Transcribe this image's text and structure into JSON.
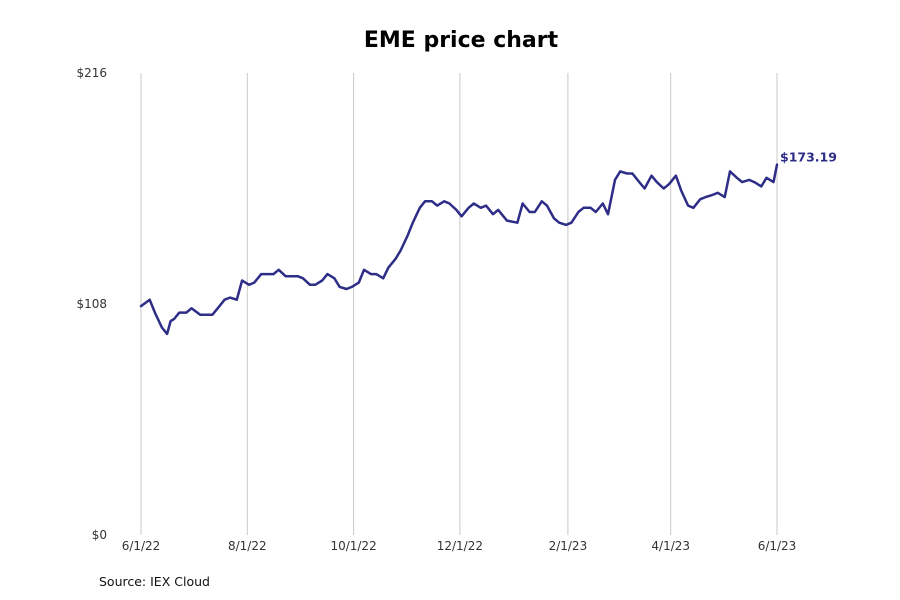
{
  "chart_data": {
    "type": "line",
    "title": "EME price chart",
    "source": "Source: IEX Cloud",
    "xlabel": "",
    "ylabel": "",
    "ylim": [
      0,
      216
    ],
    "y_ticks": [
      {
        "value": 0,
        "label": "$0"
      },
      {
        "value": 108,
        "label": "$108"
      },
      {
        "value": 216,
        "label": "$216"
      }
    ],
    "x_domain": [
      "2022-06-01",
      "2023-06-01"
    ],
    "x_ticks": [
      {
        "date": "2022-06-01",
        "label": "6/1/22"
      },
      {
        "date": "2022-08-01",
        "label": "8/1/22"
      },
      {
        "date": "2022-10-01",
        "label": "10/1/22"
      },
      {
        "date": "2022-12-01",
        "label": "12/1/22"
      },
      {
        "date": "2023-02-01",
        "label": "2/1/23"
      },
      {
        "date": "2023-04-01",
        "label": "4/1/23"
      },
      {
        "date": "2023-06-01",
        "label": "6/1/23"
      }
    ],
    "vertical_grid": true,
    "horizontal_grid": false,
    "series": [
      {
        "color": "#2e2d87",
        "last_value_label": "$173.19",
        "x": [
          "2022-06-01",
          "2022-06-06",
          "2022-06-09",
          "2022-06-13",
          "2022-06-16",
          "2022-06-18",
          "2022-06-20",
          "2022-06-23",
          "2022-06-27",
          "2022-06-30",
          "2022-07-05",
          "2022-07-08",
          "2022-07-12",
          "2022-07-15",
          "2022-07-19",
          "2022-07-22",
          "2022-07-26",
          "2022-07-29",
          "2022-08-02",
          "2022-08-05",
          "2022-08-09",
          "2022-08-12",
          "2022-08-16",
          "2022-08-19",
          "2022-08-23",
          "2022-08-26",
          "2022-08-30",
          "2022-09-02",
          "2022-09-06",
          "2022-09-09",
          "2022-09-13",
          "2022-09-16",
          "2022-09-20",
          "2022-09-23",
          "2022-09-27",
          "2022-09-30",
          "2022-10-04",
          "2022-10-07",
          "2022-10-11",
          "2022-10-14",
          "2022-10-18",
          "2022-10-21",
          "2022-10-25",
          "2022-10-28",
          "2022-11-01",
          "2022-11-04",
          "2022-11-08",
          "2022-11-11",
          "2022-11-15",
          "2022-11-18",
          "2022-11-22",
          "2022-11-25",
          "2022-11-29",
          "2022-12-02",
          "2022-12-06",
          "2022-12-09",
          "2022-12-13",
          "2022-12-16",
          "2022-12-20",
          "2022-12-23",
          "2022-12-28",
          "2023-01-03",
          "2023-01-06",
          "2023-01-10",
          "2023-01-13",
          "2023-01-17",
          "2023-01-20",
          "2023-01-24",
          "2023-01-27",
          "2023-01-31",
          "2023-02-03",
          "2023-02-07",
          "2023-02-10",
          "2023-02-14",
          "2023-02-17",
          "2023-02-21",
          "2023-02-24",
          "2023-02-28",
          "2023-03-03",
          "2023-03-07",
          "2023-03-10",
          "2023-03-14",
          "2023-03-17",
          "2023-03-21",
          "2023-03-24",
          "2023-03-28",
          "2023-03-31",
          "2023-04-04",
          "2023-04-07",
          "2023-04-11",
          "2023-04-14",
          "2023-04-18",
          "2023-04-21",
          "2023-04-25",
          "2023-04-28",
          "2023-05-02",
          "2023-05-05",
          "2023-05-09",
          "2023-05-12",
          "2023-05-16",
          "2023-05-19",
          "2023-05-23",
          "2023-05-26",
          "2023-05-30",
          "2023-06-01"
        ],
        "y": [
          107,
          110,
          104,
          97,
          94,
          100,
          101,
          104,
          104,
          106,
          103,
          103,
          103,
          106,
          110,
          111,
          110,
          119,
          117,
          118,
          122,
          122,
          122,
          124,
          121,
          121,
          121,
          120,
          117,
          117,
          119,
          122,
          120,
          116,
          115,
          116,
          118,
          124,
          122,
          122,
          120,
          125,
          129,
          133,
          140,
          146,
          153,
          156,
          156,
          154,
          156,
          155,
          152,
          149,
          153,
          155,
          153,
          154,
          150,
          152,
          147,
          146,
          155,
          151,
          151,
          156,
          154,
          148,
          146,
          145,
          146,
          151,
          153,
          153,
          151,
          155,
          150,
          166,
          170,
          169,
          169,
          165,
          162,
          168,
          165,
          162,
          164,
          168,
          161,
          154,
          153,
          157,
          158,
          159,
          160,
          158,
          170,
          167,
          165,
          166,
          165,
          163,
          167,
          165,
          173.19
        ]
      }
    ]
  }
}
